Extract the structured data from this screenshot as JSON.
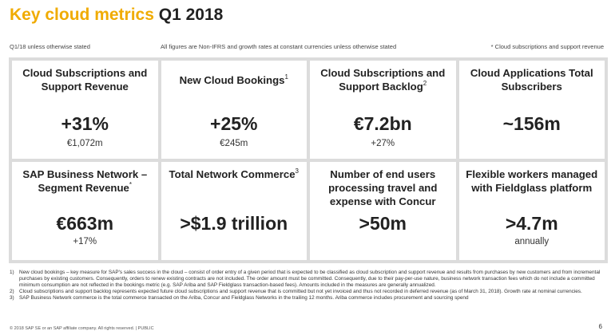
{
  "header": {
    "title_highlight": "Key cloud metrics",
    "title_rest": "Q1 2018"
  },
  "subheader": {
    "left": "Q1/18 unless otherwise stated",
    "middle": "All figures are Non-IFRS and growth rates at constant currencies unless otherwise stated",
    "right": "* Cloud subscriptions and support revenue"
  },
  "tiles": [
    {
      "title": "Cloud Subscriptions and Support Revenue",
      "sup": "",
      "value": "+31%",
      "sub": "€1,072m"
    },
    {
      "title": "New Cloud Bookings",
      "sup": "1",
      "value": "+25%",
      "sub": "€245m"
    },
    {
      "title": "Cloud Subscriptions and Support Backlog",
      "sup": "2",
      "value": "€7.2bn",
      "sub": "+27%"
    },
    {
      "title": "Cloud Applications Total Subscribers",
      "sup": "",
      "value": "~156m",
      "sub": ""
    },
    {
      "title": "SAP Business Network – Segment Revenue",
      "sup": "*",
      "value": "€663m",
      "sub": "+17%"
    },
    {
      "title": "Total Network Commerce",
      "sup": "3",
      "value": ">$1.9 trillion",
      "sub": ""
    },
    {
      "title": "Number of end users processing travel and expense with Concur",
      "sup": "",
      "value": ">50m",
      "sub": ""
    },
    {
      "title": "Flexible workers managed with Fieldglass platform",
      "sup": "",
      "value": ">4.7m",
      "sub": "annually"
    }
  ],
  "footnotes": [
    {
      "num": "1)",
      "text": "New cloud bookings – key measure for SAP's sales success in the cloud – consist of order entry of a given period that is expected to be classified as cloud subscription and support revenue and results from purchases by new customers and from incremental purchases by existing customers. Consequently, orders to renew existing contracts are not included. The order amount must be committed. Consequently, due to their pay-per-use nature, business network transaction fees which do not include a committed minimum consumption are not reflected in the bookings metric (e.g. SAP Ariba and SAP Fieldglass transaction-based fees). Amounts included in the measures are generally annualized."
    },
    {
      "num": "2)",
      "text": "Cloud subscriptions and support backlog represents expected future cloud subscriptions and support revenue that is committed but not yet invoiced and thus not recorded in deferred revenue (as of March 31, 2018). Growth rate at nominal currencies."
    },
    {
      "num": "3)",
      "text": "SAP Business Network commerce is the total commerce transacted on the Ariba, Concur and Fieldglass Networks in the trailing 12 months. Ariba commerce includes procurement and sourcing spend"
    }
  ],
  "footer": {
    "copyright": "© 2018 SAP SE or an SAP affiliate company. All rights reserved.  |  PUBLIC",
    "page": "6"
  }
}
